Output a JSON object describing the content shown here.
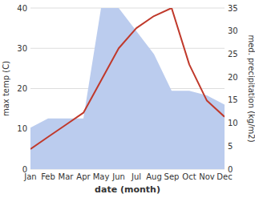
{
  "chart_data": {
    "type": "line",
    "xlabel": "date (month)",
    "ylabel": "max temp (C)",
    "y2label": "med. precipitation (kg/m2)",
    "categories": [
      "Jan",
      "Feb",
      "Mar",
      "Apr",
      "May",
      "Jun",
      "Jul",
      "Aug",
      "Sep",
      "Oct",
      "Nov",
      "Dec"
    ],
    "series": [
      {
        "type": "area",
        "axis": "y2",
        "color": "#bbccee",
        "values": [
          9,
          11,
          11,
          11,
          35,
          35,
          30,
          25,
          17,
          17,
          16,
          14
        ]
      },
      {
        "type": "line",
        "color": "#c0392b",
        "values": [
          5,
          8,
          11,
          14,
          22,
          30,
          35,
          38,
          40,
          26,
          17,
          13
        ]
      }
    ],
    "ylim": [
      0,
      40
    ],
    "yticks": [
      0,
      10,
      20,
      30,
      40
    ],
    "y2lim": [
      0,
      35
    ],
    "y2ticks": [
      0,
      5,
      10,
      15,
      20,
      25,
      30,
      35
    ],
    "grid": true
  }
}
